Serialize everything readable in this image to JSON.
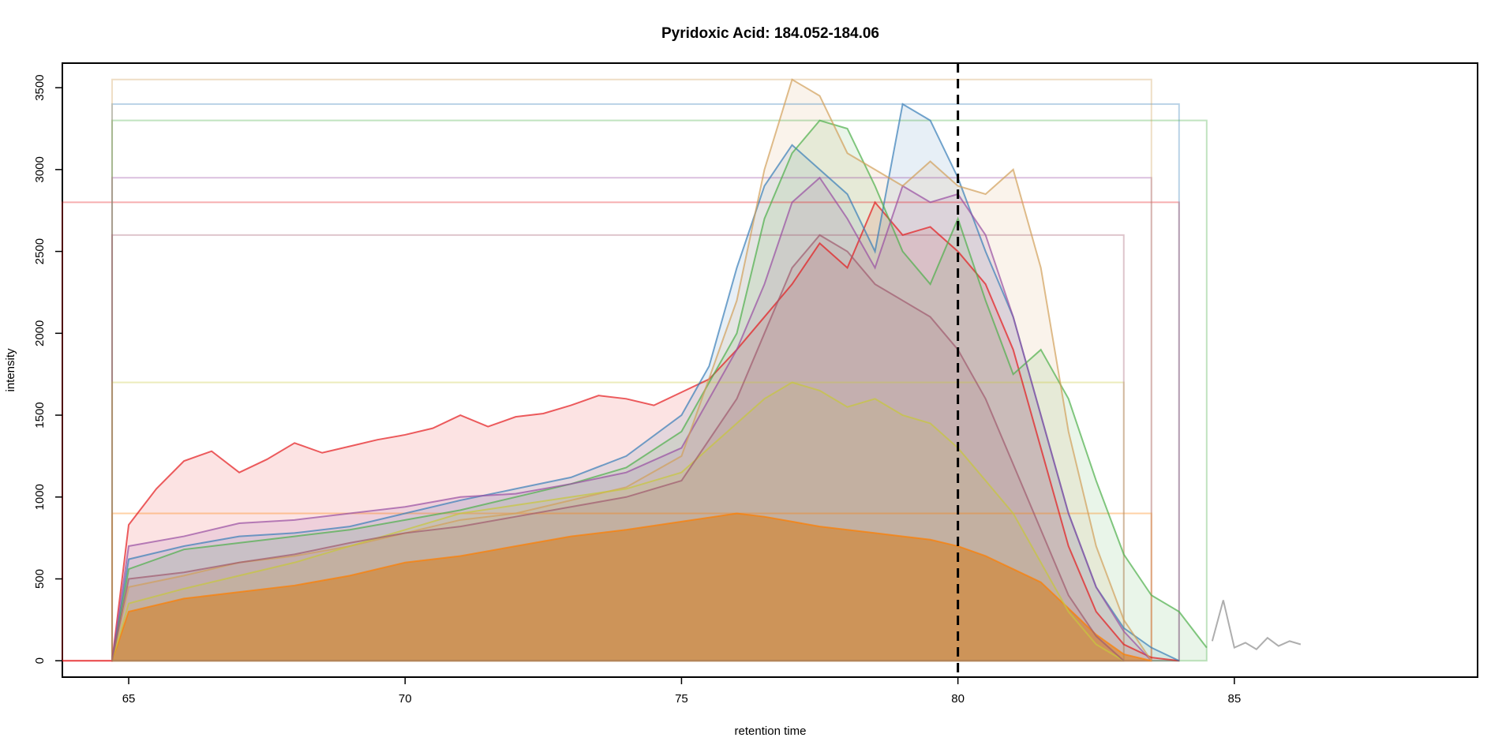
{
  "chart_data": {
    "type": "line",
    "title": "Pyridoxic Acid: 184.052-184.06",
    "xlabel": "retention time",
    "ylabel": "intensity",
    "xlim": [
      63.8,
      89.4
    ],
    "ylim": [
      -100,
      3650
    ],
    "xticks": [
      65,
      70,
      75,
      80,
      85
    ],
    "yticks": [
      0,
      500,
      1000,
      1500,
      2000,
      2500,
      3000,
      3500
    ],
    "reference_line": {
      "x": 80,
      "style": "dashed",
      "color": "#000000"
    },
    "grid": false,
    "legend": "none",
    "palette": [
      "#E41A1C",
      "#377EB8",
      "#4DAF4A",
      "#984EA3",
      "#FF7F00",
      "#FFFF33"
    ],
    "fill_color": "#D9904A",
    "series": [
      {
        "color": "#E41A1C",
        "x": [
          63.8,
          64.7,
          65.0,
          65.5,
          66.0,
          66.5,
          67.0,
          67.5,
          68.0,
          68.5,
          69.0,
          69.5,
          70.0,
          70.5,
          71.0,
          71.5,
          72.0,
          72.5,
          73.0,
          73.5,
          74.0,
          74.5,
          75.0,
          75.5,
          76.0,
          76.5,
          77.0,
          77.5,
          78.0,
          78.5,
          79.0,
          79.5,
          80.0,
          80.5,
          81.0,
          81.5,
          82.0,
          82.5,
          83.0,
          83.5,
          84.0
        ],
        "y": [
          0,
          0,
          830,
          1050,
          1220,
          1280,
          1150,
          1230,
          1330,
          1270,
          1310,
          1350,
          1380,
          1420,
          1500,
          1430,
          1490,
          1510,
          1560,
          1620,
          1600,
          1560,
          1640,
          1720,
          1900,
          2100,
          2300,
          2550,
          2400,
          2800,
          2600,
          2650,
          2500,
          2300,
          1900,
          1300,
          700,
          300,
          100,
          20,
          0
        ]
      },
      {
        "color": "#377EB8",
        "x": [
          64.7,
          65.0,
          66.0,
          67.0,
          68.0,
          69.0,
          70.0,
          71.0,
          72.0,
          73.0,
          74.0,
          75.0,
          75.5,
          76.0,
          76.5,
          77.0,
          77.5,
          78.0,
          78.5,
          79.0,
          79.5,
          80.0,
          80.5,
          81.0,
          81.5,
          82.0,
          82.5,
          83.0,
          83.5,
          84.0
        ],
        "y": [
          0,
          620,
          700,
          760,
          780,
          820,
          900,
          980,
          1050,
          1120,
          1250,
          1500,
          1800,
          2400,
          2900,
          3150,
          3000,
          2850,
          2500,
          3400,
          3300,
          2950,
          2500,
          2100,
          1500,
          900,
          450,
          200,
          80,
          0
        ]
      },
      {
        "color": "#4DAF4A",
        "x": [
          64.7,
          65.0,
          66.0,
          67.0,
          68.0,
          69.0,
          70.0,
          71.0,
          72.0,
          73.0,
          74.0,
          75.0,
          76.0,
          76.5,
          77.0,
          77.5,
          78.0,
          78.5,
          79.0,
          79.5,
          80.0,
          80.5,
          81.0,
          81.5,
          82.0,
          82.5,
          83.0,
          83.5,
          84.0,
          84.5
        ],
        "y": [
          0,
          560,
          680,
          720,
          760,
          800,
          860,
          920,
          1000,
          1080,
          1180,
          1400,
          2000,
          2700,
          3100,
          3300,
          3250,
          2900,
          2500,
          2300,
          2700,
          2200,
          1750,
          1900,
          1600,
          1100,
          650,
          400,
          300,
          80
        ]
      },
      {
        "color": "#984EA3",
        "x": [
          64.7,
          65.0,
          66.0,
          67.0,
          68.0,
          69.0,
          70.0,
          71.0,
          72.0,
          73.0,
          74.0,
          75.0,
          76.0,
          76.5,
          77.0,
          77.5,
          78.0,
          78.5,
          79.0,
          79.5,
          80.0,
          80.5,
          81.0,
          81.5,
          82.0,
          82.5,
          83.0,
          83.5
        ],
        "y": [
          0,
          700,
          760,
          840,
          860,
          900,
          940,
          1000,
          1020,
          1080,
          1150,
          1300,
          1900,
          2300,
          2800,
          2950,
          2700,
          2400,
          2900,
          2800,
          2850,
          2600,
          2100,
          1500,
          900,
          450,
          180,
          0
        ]
      },
      {
        "color": "#FF7F00",
        "x": [
          64.7,
          65.0,
          66.0,
          67.0,
          68.0,
          69.0,
          70.0,
          71.0,
          72.0,
          73.0,
          74.0,
          75.0,
          76.0,
          76.5,
          77.0,
          77.5,
          78.0,
          78.5,
          79.0,
          79.5,
          80.0,
          80.5,
          81.0,
          81.5,
          82.0,
          82.5,
          83.0,
          83.5
        ],
        "y": [
          0,
          300,
          380,
          420,
          460,
          520,
          600,
          640,
          700,
          760,
          800,
          850,
          900,
          880,
          850,
          820,
          800,
          780,
          760,
          740,
          700,
          640,
          560,
          480,
          320,
          160,
          40,
          0
        ]
      },
      {
        "color": "#D2A05A",
        "x": [
          64.7,
          65.0,
          66.0,
          67.0,
          68.0,
          69.0,
          70.0,
          71.0,
          72.0,
          73.0,
          74.0,
          75.0,
          76.0,
          76.5,
          77.0,
          77.5,
          78.0,
          78.5,
          79.0,
          79.5,
          80.0,
          80.5,
          81.0,
          81.5,
          82.0,
          82.5,
          83.0,
          83.5
        ],
        "y": [
          0,
          450,
          520,
          600,
          640,
          700,
          780,
          860,
          900,
          980,
          1060,
          1250,
          2200,
          3000,
          3550,
          3450,
          3100,
          3000,
          2900,
          3050,
          2900,
          2850,
          3000,
          2400,
          1400,
          700,
          250,
          0
        ]
      },
      {
        "color": "#C8C83C",
        "x": [
          64.7,
          65.0,
          66.0,
          67.0,
          68.0,
          69.0,
          70.0,
          71.0,
          72.0,
          73.0,
          74.0,
          75.0,
          76.0,
          76.5,
          77.0,
          77.5,
          78.0,
          78.5,
          79.0,
          79.5,
          80.0,
          80.5,
          81.0,
          81.5,
          82.0,
          82.5,
          83.0
        ],
        "y": [
          0,
          350,
          440,
          520,
          600,
          700,
          800,
          900,
          950,
          1000,
          1050,
          1150,
          1450,
          1600,
          1700,
          1650,
          1550,
          1600,
          1500,
          1450,
          1300,
          1100,
          900,
          600,
          300,
          100,
          0
        ]
      },
      {
        "color": "#A05A6E",
        "x": [
          64.7,
          65.0,
          66.0,
          67.0,
          68.0,
          69.0,
          70.0,
          71.0,
          72.0,
          73.0,
          74.0,
          75.0,
          76.0,
          76.5,
          77.0,
          77.5,
          78.0,
          78.5,
          79.0,
          79.5,
          80.0,
          80.5,
          81.0,
          81.5,
          82.0,
          82.5,
          83.0
        ],
        "y": [
          0,
          500,
          540,
          600,
          650,
          720,
          780,
          820,
          880,
          940,
          1000,
          1100,
          1600,
          2000,
          2400,
          2600,
          2500,
          2300,
          2200,
          2100,
          1900,
          1600,
          1200,
          800,
          400,
          150,
          0
        ]
      },
      {
        "color": "#8C8C8C",
        "x": [
          84.6,
          84.8,
          85.0,
          85.2,
          85.4,
          85.6,
          85.8,
          86.0,
          86.2
        ],
        "y": [
          120,
          370,
          80,
          110,
          70,
          140,
          90,
          120,
          100
        ]
      }
    ]
  }
}
